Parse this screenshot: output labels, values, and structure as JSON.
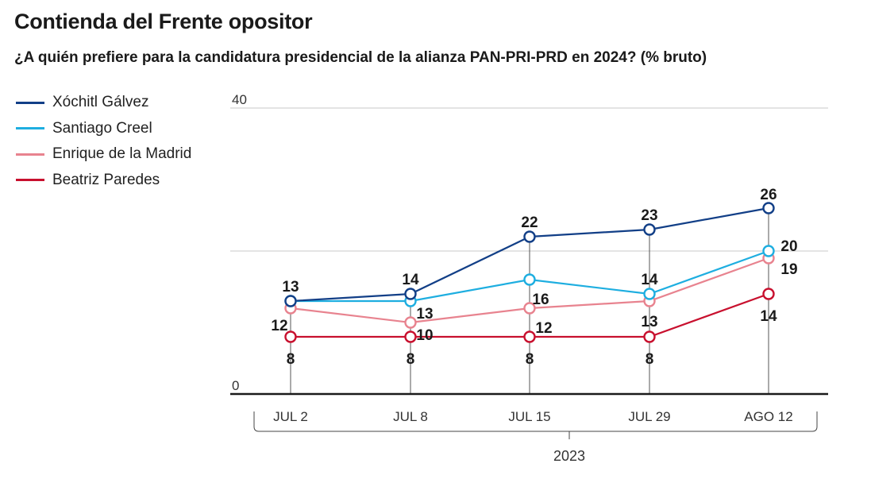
{
  "title": "Contienda del Frente opositor",
  "subtitle": "¿A quién prefiere para la candidatura presidencial de la alianza PAN-PRI-PRD en 2024? (% bruto)",
  "chart_data": {
    "type": "line",
    "categories": [
      "JUL 2",
      "JUL 8",
      "JUL 15",
      "JUL 29",
      "AGO 12"
    ],
    "year_label": "2023",
    "ylim": [
      0,
      40
    ],
    "y_tick_labels": [
      "0",
      "40"
    ],
    "grid_lines_at": [
      20,
      40
    ],
    "legend_position": "top-left",
    "series": [
      {
        "name": "Xóchitl Gálvez",
        "color": "#123f87",
        "values": [
          13,
          14,
          22,
          23,
          26
        ]
      },
      {
        "name": "Santiago Creel",
        "color": "#1eaee0",
        "values": [
          13,
          13,
          16,
          14,
          20
        ]
      },
      {
        "name": "Enrique de la Madrid",
        "color": "#e8838f",
        "values": [
          12,
          10,
          12,
          13,
          19
        ]
      },
      {
        "name": "Beatriz Paredes",
        "color": "#c8102e",
        "values": [
          8,
          8,
          8,
          8,
          14
        ]
      }
    ]
  }
}
